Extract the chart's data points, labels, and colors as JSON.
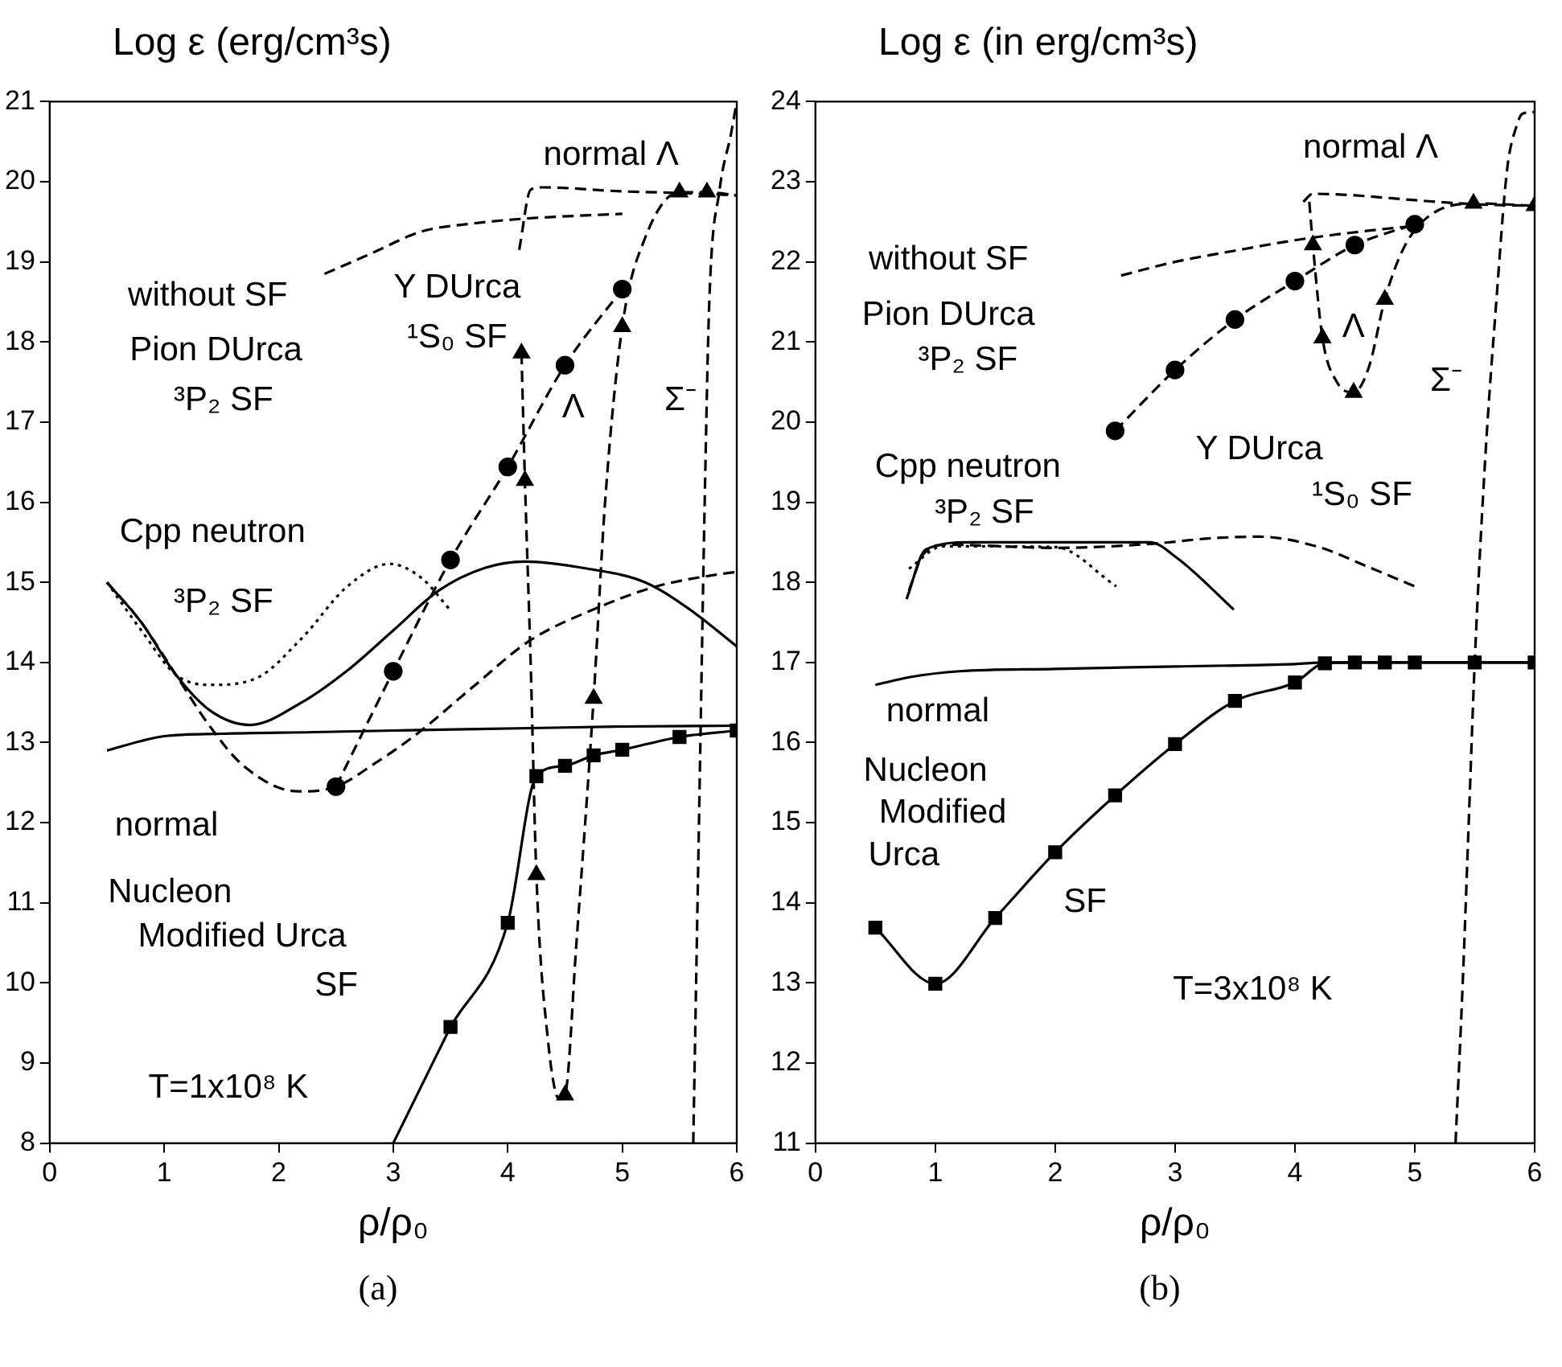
{
  "chart_data": [
    {
      "type": "line",
      "ylabel": "Log ε (erg/cm³s)",
      "xlabel": "ρ/ρ₀",
      "xlim": [
        0,
        6
      ],
      "xticks": [
        0,
        1,
        2,
        3,
        4,
        5,
        6
      ],
      "ylim": [
        8,
        21
      ],
      "yticks": [
        8,
        9,
        10,
        11,
        12,
        13,
        14,
        15,
        16,
        17,
        18,
        19,
        20,
        21
      ],
      "series": [
        {
          "color": "#000000",
          "line_style": "dashed",
          "marker": "none",
          "x": [
            2.4,
            2.8,
            3.25,
            3.7,
            4.15,
            5.0
          ],
          "values": [
            18.85,
            19.1,
            19.38,
            19.48,
            19.54,
            19.6
          ]
        },
        {
          "color": "#000000",
          "line_style": "dashed",
          "marker": "circle",
          "x": [
            2.5,
            3.0,
            3.5,
            4.0,
            4.5,
            5.0
          ],
          "values": [
            12.45,
            13.89,
            15.28,
            16.44,
            17.71,
            18.66
          ]
        },
        {
          "color": "#000000",
          "line_style": "solid",
          "marker": "none",
          "x": [
            0.5,
            0.8,
            1.1,
            1.4,
            1.75,
            2.2,
            2.6,
            3.0,
            3.4,
            3.8,
            4.15,
            4.7,
            5.2,
            5.6,
            6.0
          ],
          "values": [
            15.0,
            14.5,
            13.85,
            13.4,
            13.22,
            13.5,
            13.9,
            14.4,
            14.9,
            15.18,
            15.26,
            15.17,
            15.0,
            14.65,
            14.2
          ]
        },
        {
          "color": "#000000",
          "line_style": "dotted",
          "marker": "none",
          "x": [
            0.5,
            0.8,
            1.1,
            1.4,
            1.8,
            2.2,
            2.6,
            2.97,
            3.25,
            3.5
          ],
          "values": [
            15.0,
            14.4,
            13.85,
            13.72,
            13.8,
            14.3,
            14.95,
            15.23,
            15.05,
            14.65
          ]
        },
        {
          "color": "#000000",
          "line_style": "dashed",
          "marker": "none",
          "x": [
            0.5,
            0.8,
            1.1,
            1.4,
            1.7,
            2.17,
            2.5,
            2.85,
            3.2,
            3.7,
            4.19,
            4.78,
            5.3,
            5.84,
            6.0
          ],
          "values": [
            15.0,
            14.5,
            13.85,
            13.2,
            12.7,
            12.39,
            12.45,
            12.75,
            13.1,
            13.7,
            14.27,
            14.68,
            14.95,
            15.1,
            15.13
          ]
        },
        {
          "color": "#000000",
          "line_style": "solid",
          "marker": "none",
          "x": [
            0.5,
            0.8,
            1.0,
            1.5,
            2.3,
            3.0,
            4.2,
            5.0,
            6.0
          ],
          "values": [
            12.9,
            13.02,
            13.08,
            13.11,
            13.13,
            13.15,
            13.18,
            13.2,
            13.21
          ]
        },
        {
          "color": "#000000",
          "line_style": "solid",
          "x": [
            3.0,
            3.5
          ],
          "values": [
            8.0,
            9.45
          ]
        },
        {
          "color": "#000000",
          "line_style": "solid",
          "marker": "square",
          "x": [
            3.5,
            4.0,
            4.25,
            4.5,
            4.75,
            5.0,
            5.5,
            6.0
          ],
          "values": [
            9.45,
            10.75,
            12.58,
            12.71,
            12.84,
            12.91,
            13.07,
            13.15
          ]
        },
        {
          "color": "#000000",
          "line_style": "dashed",
          "marker": "none",
          "x": [
            4.1,
            4.2,
            4.3,
            5.0,
            5.5,
            6.0
          ],
          "values": [
            19.15,
            19.9,
            19.93,
            19.88,
            19.86,
            19.83
          ]
        },
        {
          "color": "#000000",
          "line_style": "dashed",
          "marker": "none",
          "x": [
            4.12,
            4.15,
            4.2,
            4.25,
            4.35,
            4.45,
            4.5,
            4.6,
            4.75,
            4.85,
            5.0,
            5.2,
            5.5,
            5.74,
            6.0
          ],
          "values": [
            17.86,
            16.27,
            14.0,
            11.35,
            9.3,
            8.55,
            8.6,
            10.5,
            13.55,
            16.0,
            18.19,
            19.3,
            19.87,
            19.87,
            19.83
          ]
        },
        {
          "type": "scatter",
          "color": "#000000",
          "marker": "triangle",
          "x": [
            4.12,
            4.15,
            4.25,
            4.5,
            4.75,
            5.0,
            5.5,
            5.74
          ],
          "values": [
            17.86,
            16.27,
            11.35,
            8.6,
            13.55,
            18.19,
            19.87,
            19.87
          ]
        },
        {
          "color": "#000000",
          "line_style": "dashed",
          "marker": "none",
          "x": [
            5.62,
            5.67,
            5.72,
            5.76,
            5.85,
            5.95,
            6.0
          ],
          "values": [
            8.0,
            12.0,
            16.0,
            18.5,
            19.9,
            20.6,
            21.0
          ]
        }
      ],
      "annotations": [
        "normal Λ",
        "without SF",
        "Y DUrca",
        "¹S₀ SF",
        "Pion DUrca",
        "³P₂ SF",
        "Λ",
        "Σ⁻",
        "Cpp neutron",
        "³P₂ SF",
        "normal",
        "Nucleon",
        "Modified Urca",
        "SF",
        "T=1x10⁸ K",
        "(a)"
      ]
    },
    {
      "type": "line",
      "ylabel": "Log ε (in erg/cm³s)",
      "xlabel": "ρ/ρ₀",
      "xlim": [
        0,
        6
      ],
      "xticks": [
        0,
        1,
        2,
        3,
        4,
        5,
        6
      ],
      "ylim": [
        11,
        24
      ],
      "yticks": [
        11,
        12,
        13,
        14,
        15,
        16,
        17,
        18,
        19,
        20,
        21,
        22,
        23,
        24
      ],
      "series": [
        {
          "color": "#000000",
          "line_style": "dashed",
          "marker": "none",
          "x": [
            2.55,
            3.0,
            3.5,
            4.0,
            4.5,
            5.0
          ],
          "values": [
            21.83,
            22.0,
            22.14,
            22.27,
            22.37,
            22.45
          ]
        },
        {
          "color": "#000000",
          "line_style": "dashed",
          "marker": "circle",
          "x": [
            2.5,
            3.0,
            3.5,
            4.0,
            4.5,
            5.0
          ],
          "values": [
            19.89,
            20.65,
            21.28,
            21.76,
            22.21,
            22.47
          ]
        },
        {
          "color": "#000000",
          "line_style": "dashed",
          "marker": "none",
          "x": [
            4.07,
            4.15,
            4.5,
            5.0,
            5.5,
            6.0
          ],
          "values": [
            22.75,
            22.85,
            22.83,
            22.77,
            22.72,
            22.7
          ]
        },
        {
          "color": "#000000",
          "line_style": "dashed",
          "marker": "none",
          "x": [
            4.12,
            4.15,
            4.23,
            4.35,
            4.49,
            4.62,
            4.75,
            4.9,
            5.1,
            5.49,
            6.0
          ],
          "values": [
            22.75,
            22.21,
            21.05,
            20.5,
            20.37,
            20.7,
            21.53,
            22.15,
            22.55,
            22.73,
            22.7
          ]
        },
        {
          "type": "scatter",
          "color": "#000000",
          "marker": "triangle",
          "x": [
            4.15,
            4.23,
            4.49,
            4.75,
            5.49,
            6.0
          ],
          "values": [
            22.21,
            21.05,
            20.37,
            21.53,
            22.73,
            22.7
          ]
        },
        {
          "color": "#000000",
          "line_style": "dashed",
          "marker": "none",
          "x": [
            5.34,
            5.4,
            5.45,
            5.5,
            5.59,
            5.68,
            5.77,
            5.85,
            5.9,
            6.0
          ],
          "values": [
            11.0,
            13.0,
            15.0,
            17.0,
            19.6,
            21.5,
            23.15,
            23.7,
            23.85,
            23.87
          ]
        },
        {
          "color": "#000000",
          "line_style": "solid",
          "marker": "none",
          "x": [
            0.76,
            0.92,
            1.3,
            2.0,
            2.79,
            3.02,
            3.49
          ],
          "values": [
            17.79,
            18.41,
            18.5,
            18.5,
            18.5,
            18.3,
            17.66
          ]
        },
        {
          "color": "#000000",
          "line_style": "dotted",
          "marker": "none",
          "x": [
            0.78,
            1.06,
            2.0,
            2.51
          ],
          "values": [
            18.17,
            18.45,
            18.44,
            17.95
          ]
        },
        {
          "color": "#000000",
          "line_style": "dashed",
          "marker": "none",
          "x": [
            0.78,
            0.9,
            1.1,
            2.0,
            2.8,
            3.3,
            3.7,
            4.2,
            4.6,
            5.0
          ],
          "values": [
            17.9,
            18.35,
            18.47,
            18.43,
            18.48,
            18.55,
            18.57,
            18.44,
            18.2,
            17.95
          ]
        },
        {
          "color": "#000000",
          "line_style": "solid",
          "marker": "none",
          "x": [
            0.5,
            0.8,
            1.2,
            2.0,
            3.0,
            4.0,
            4.25,
            6.0
          ],
          "values": [
            16.72,
            16.82,
            16.89,
            16.92,
            16.95,
            16.98,
            17.0,
            17.0
          ]
        },
        {
          "color": "#000000",
          "line_style": "solid",
          "marker": "square",
          "x": [
            0.5,
            1.0,
            1.5,
            2.0,
            2.5,
            3.0,
            3.5,
            4.0,
            4.25,
            4.5,
            4.75,
            5.0,
            5.5,
            6.0
          ],
          "values": [
            13.69,
            12.99,
            13.81,
            14.63,
            15.34,
            15.98,
            16.52,
            16.75,
            16.99,
            17.0,
            17.0,
            17.0,
            17.0,
            17.0
          ]
        }
      ],
      "annotations": [
        "normal Λ",
        "without SF",
        "Pion DUrca",
        "³P₂ SF",
        "Λ",
        "Σ⁻",
        "Y DUrca",
        "¹S₀ SF",
        "Cpp neutron",
        "³P₂ SF",
        "normal",
        "Nucleon",
        "Modified",
        "Urca",
        "SF",
        "T=3x10⁸ K",
        "(b)"
      ]
    }
  ]
}
